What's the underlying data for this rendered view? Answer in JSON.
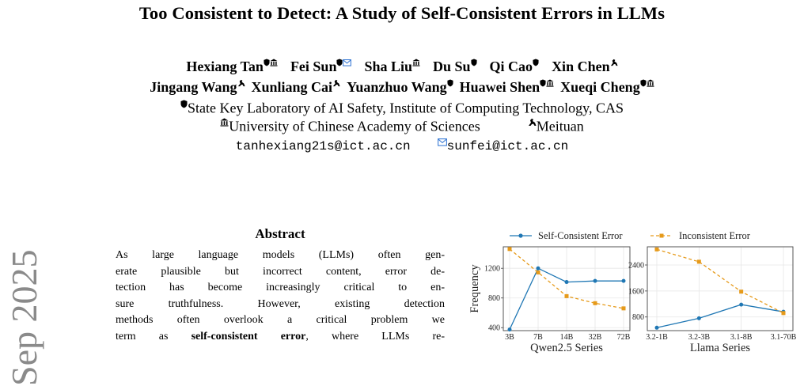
{
  "side_stamp": "Sep 2025",
  "title": "Too Consistent to Detect: A Study of Self-Consistent Errors in LLMs",
  "authors_line1": [
    {
      "name": "Hexiang Tan",
      "marks": [
        "shield",
        "building"
      ]
    },
    {
      "name": "Fei Sun",
      "marks": [
        "shield",
        "mail"
      ]
    },
    {
      "name": "Sha Liu",
      "marks": [
        "building"
      ]
    },
    {
      "name": "Du Su",
      "marks": [
        "shield"
      ]
    },
    {
      "name": "Qi Cao",
      "marks": [
        "shield"
      ]
    },
    {
      "name": "Xin Chen",
      "marks": [
        "kangaroo"
      ]
    }
  ],
  "authors_line2": [
    {
      "name": "Jingang Wang",
      "marks": [
        "kangaroo"
      ]
    },
    {
      "name": "Xunliang Cai",
      "marks": [
        "kangaroo"
      ]
    },
    {
      "name": "Yuanzhuo Wang",
      "marks": [
        "shield"
      ]
    },
    {
      "name": "Huawei Shen",
      "marks": [
        "shield",
        "building"
      ]
    },
    {
      "name": "Xueqi Cheng",
      "marks": [
        "shield",
        "building"
      ]
    }
  ],
  "affiliations": {
    "ict": "State Key Laboratory of AI Safety, Institute of Computing Technology, CAS",
    "ucas": "University of Chinese Academy of Sciences",
    "meituan": "Meituan"
  },
  "emails": {
    "first": "tanhexiang21s@ict.ac.cn",
    "corresponding": "sunfei@ict.ac.cn"
  },
  "abstract": {
    "heading": "Abstract",
    "lines": [
      {
        "text": "As large language models (LLMs) often gen-"
      },
      {
        "text": "erate plausible but incorrect content, error de-"
      },
      {
        "text": "tection has become increasingly critical to en-"
      },
      {
        "text": "sure truthfulness. However, existing detection"
      },
      {
        "text": "methods often overlook a critical problem we"
      },
      {
        "pre": "term as ",
        "bold": "self-consistent error",
        "post": ", where LLMs re-"
      }
    ]
  },
  "colors": {
    "self_consistent": "#1f77b4",
    "inconsistent": "#e69a1a",
    "grid": "#e6e6e6"
  },
  "chart_data": [
    {
      "type": "line",
      "xlabel": "Qwen2.5 Series",
      "ylabel": "Frequency",
      "categories": [
        "3B",
        "7B",
        "14B",
        "32B",
        "72B"
      ],
      "yticks": [
        400,
        800,
        1200
      ],
      "ylim": [
        360,
        1490
      ],
      "grid": true,
      "legend": "top",
      "series": [
        {
          "name": "Self-Consistent Error",
          "style": "solid",
          "marker": "circle",
          "values": [
            375,
            1200,
            1015,
            1030,
            1030
          ]
        },
        {
          "name": "Inconsistent Error",
          "style": "dashed",
          "marker": "square",
          "values": [
            1460,
            1145,
            825,
            730,
            660
          ]
        }
      ]
    },
    {
      "type": "line",
      "xlabel": "Llama Series",
      "ylabel": "",
      "categories": [
        "3.2-1B",
        "3.2-3B",
        "3.1-8B",
        "3.1-70B"
      ],
      "yticks": [
        800,
        1600,
        2400
      ],
      "ylim": [
        380,
        2960
      ],
      "grid": true,
      "legend": "top",
      "series": [
        {
          "name": "Self-Consistent Error",
          "style": "solid",
          "marker": "circle",
          "values": [
            470,
            760,
            1180,
            960
          ]
        },
        {
          "name": "Inconsistent Error",
          "style": "dashed",
          "marker": "square",
          "values": [
            2880,
            2500,
            1580,
            920
          ]
        }
      ]
    }
  ]
}
